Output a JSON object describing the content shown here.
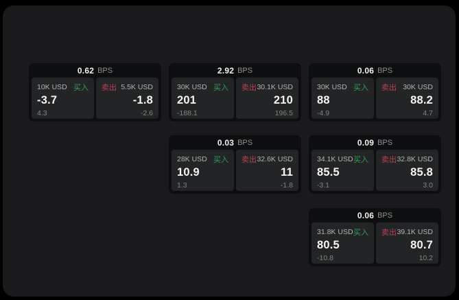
{
  "colors": {
    "page_background": "#000000",
    "board_background": "#1a1a1c",
    "card_background": "#0d0e0f",
    "tile_background": "#232425",
    "buy_green": "#2e9e5b",
    "sell_red": "#bc4058",
    "value_white": "#f5f5f5",
    "label_gray": "#b3b3b3",
    "sub_gray": "#828282"
  },
  "cards": [
    {
      "bps": "0.62",
      "unit": "BPS",
      "buy": {
        "amount": "10K USD",
        "label": "买入",
        "price": "-3.7",
        "change": "4.3"
      },
      "sell": {
        "label": "卖出",
        "amount": "5.5K USD",
        "price": "-1.8",
        "change": "-2.6"
      }
    },
    {
      "bps": "2.92",
      "unit": "BPS",
      "buy": {
        "amount": "30K USD",
        "label": "买入",
        "price": "201",
        "change": "-188.1"
      },
      "sell": {
        "label": "卖出",
        "amount": "30.1K USD",
        "price": "210",
        "change": "196.5"
      }
    },
    {
      "bps": "0.06",
      "unit": "BPS",
      "buy": {
        "amount": "30K USD",
        "label": "买入",
        "price": "88",
        "change": "-4.9"
      },
      "sell": {
        "label": "卖出",
        "amount": "30K USD",
        "price": "88.2",
        "change": "4.7"
      }
    },
    {
      "bps": "0.03",
      "unit": "BPS",
      "buy": {
        "amount": "28K USD",
        "label": "买入",
        "price": "10.9",
        "change": "1.3"
      },
      "sell": {
        "label": "卖出",
        "amount": "32.6K USD",
        "price": "11",
        "change": "-1.8"
      }
    },
    {
      "bps": "0.09",
      "unit": "BPS",
      "buy": {
        "amount": "34.1K USD",
        "label": "买入",
        "price": "85.5",
        "change": "-3.1"
      },
      "sell": {
        "label": "卖出",
        "amount": "32.8K USD",
        "price": "85.8",
        "change": "3.0"
      }
    },
    {
      "bps": "0.06",
      "unit": "BPS",
      "buy": {
        "amount": "31.8K USD",
        "label": "买入",
        "price": "80.5",
        "change": "-10.8"
      },
      "sell": {
        "label": "卖出",
        "amount": "39.1K USD",
        "price": "80.7",
        "change": "10.2"
      }
    }
  ]
}
